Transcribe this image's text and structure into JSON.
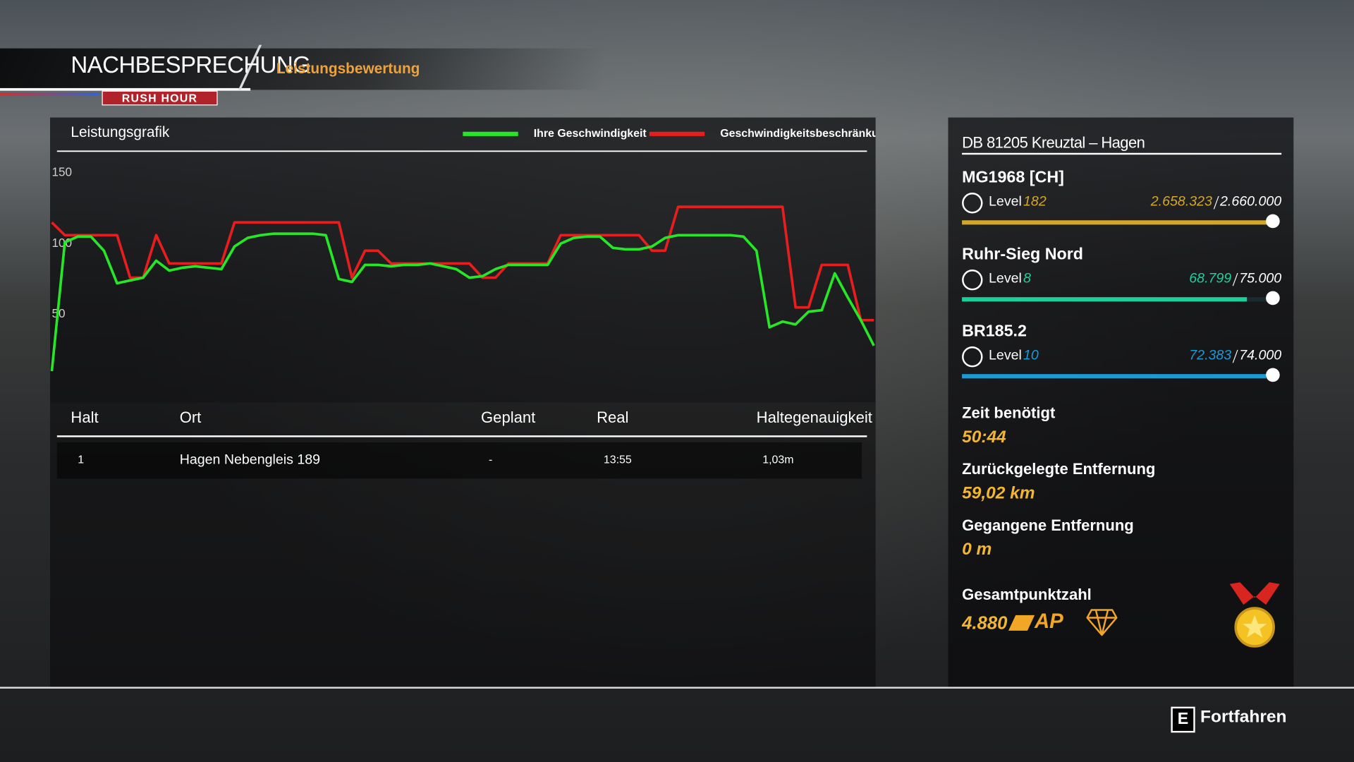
{
  "header": {
    "title": "NACHBESPRECHUNG",
    "badge": "RUSH HOUR",
    "tab": "Leistungsbewertung"
  },
  "chart": {
    "type": "line",
    "title": "Leistungsgrafik",
    "ylim": [
      0,
      150
    ],
    "yticks": [
      50,
      100,
      150
    ],
    "series": [
      {
        "name": "Ihre Geschwindigkeit",
        "color": "#27e627",
        "values": [
          10,
          101,
          105,
          105,
          95,
          72,
          74,
          76,
          88,
          81,
          83,
          84,
          83,
          82,
          98,
          104,
          106,
          107,
          107,
          107,
          107,
          106,
          75,
          73,
          85,
          85,
          84,
          85,
          85,
          86,
          84,
          82,
          76,
          77,
          82,
          85,
          85,
          85,
          85,
          100,
          104,
          105,
          105,
          97,
          96,
          96,
          98,
          104,
          106,
          106,
          106,
          106,
          106,
          105,
          95,
          41,
          45,
          43,
          52,
          53,
          79,
          62,
          46,
          28
        ]
      },
      {
        "name": "Geschwindigkeitsbeschränkung",
        "color": "#e61e1e",
        "values": [
          115,
          106,
          106,
          106,
          106,
          106,
          76,
          76,
          106,
          86,
          86,
          86,
          86,
          86,
          115,
          115,
          115,
          115,
          115,
          115,
          115,
          115,
          115,
          76,
          95,
          95,
          86,
          86,
          86,
          86,
          86,
          86,
          86,
          76,
          76,
          86,
          86,
          86,
          86,
          106,
          106,
          106,
          106,
          106,
          106,
          106,
          95,
          95,
          126,
          126,
          126,
          126,
          126,
          126,
          126,
          126,
          126,
          55,
          55,
          85,
          85,
          85,
          46,
          46
        ]
      }
    ]
  },
  "table": {
    "columns": [
      "Halt",
      "Ort",
      "Geplant",
      "Real",
      "Haltegenauigkeit"
    ],
    "rows": [
      [
        "1",
        "Hagen Nebengleis 189",
        "-",
        "13:55",
        "1,03m"
      ]
    ]
  },
  "route": "DB 81205 Kreuztal – Hagen",
  "progress": [
    {
      "name": "MG1968 [CH]",
      "level_label": "Level",
      "level": 182,
      "color": "#d4a62a",
      "xp": {
        "value": 2658323,
        "label": "2.658.323"
      },
      "xp_max": {
        "value": 2660000,
        "label": "2.660.000"
      }
    },
    {
      "name": "Ruhr-Sieg Nord",
      "level_label": "Level",
      "level": 8,
      "color": "#1fcf9a",
      "xp": {
        "value": 68799,
        "label": "68.799"
      },
      "xp_max": {
        "value": 75000,
        "label": "75.000"
      }
    },
    {
      "name": "BR185.2",
      "level_label": "Level",
      "level": 10,
      "color": "#1b9ad6",
      "xp": {
        "value": 72383,
        "label": "72.383"
      },
      "xp_max": {
        "value": 74000,
        "label": "74.000"
      }
    }
  ],
  "stats": [
    {
      "label": "Zeit benötigt",
      "value": "50:44"
    },
    {
      "label": "Zurückgelegte Entfernung",
      "value": "59,02 km"
    },
    {
      "label": "Gegangene Entfernung",
      "value": "0 m"
    }
  ],
  "score": {
    "label": "Gesamtpunktzahl",
    "value": "4.880",
    "brand": "AP"
  },
  "footer": {
    "key": "E",
    "action": "Fortfahren"
  }
}
